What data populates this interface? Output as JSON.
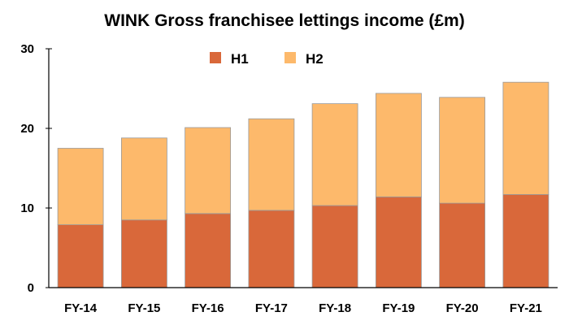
{
  "chart_data": {
    "type": "bar",
    "stacked": true,
    "title": "WINK Gross franchisee lettings income (£m)",
    "xlabel": "",
    "ylabel": "",
    "categories": [
      "FY-14",
      "FY-15",
      "FY-16",
      "FY-17",
      "FY-18",
      "FY-19",
      "FY-20",
      "FY-21"
    ],
    "series": [
      {
        "name": "H1",
        "color": "#d9683a",
        "values": [
          7.9,
          8.5,
          9.3,
          9.7,
          10.3,
          11.4,
          10.6,
          11.7
        ]
      },
      {
        "name": "H2",
        "color": "#fdb96b",
        "values": [
          9.6,
          10.3,
          10.8,
          11.5,
          12.8,
          13.0,
          13.3,
          14.1
        ]
      }
    ],
    "ylim": [
      0,
      30
    ],
    "yticks": [
      0,
      10,
      20,
      30
    ],
    "grid": false,
    "legend_position": "top-left"
  }
}
